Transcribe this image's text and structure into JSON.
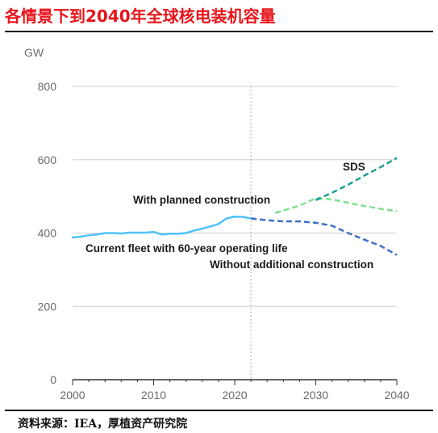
{
  "header": {
    "title": "各情景下到2040年全球核电装机容量"
  },
  "footer": {
    "source": "资料来源：IEA，厚植资产研究院"
  },
  "chart_data": {
    "type": "line",
    "title": "各情景下到2040年全球核电装机容量",
    "ylabel": "GW",
    "xlabel": "",
    "xlim": [
      2000,
      2040
    ],
    "ylim": [
      0,
      800
    ],
    "x_ticks": [
      2000,
      2010,
      2020,
      2030,
      2040
    ],
    "y_ticks": [
      0,
      200,
      400,
      600,
      800
    ],
    "grid": "horizontal",
    "reference_line_x": 2022,
    "annotations": [
      "With planned construction",
      "Current fleet with 60-year operating life",
      "Without additional construction",
      "SDS"
    ],
    "series": [
      {
        "name": "Current fleet with 60-year operating life",
        "color": "#4fc3f7",
        "style": "solid",
        "x": [
          2000,
          2001,
          2002,
          2003,
          2004,
          2005,
          2006,
          2007,
          2008,
          2009,
          2010,
          2011,
          2012,
          2013,
          2014,
          2015,
          2016,
          2017,
          2018,
          2019,
          2020,
          2021,
          2022
        ],
        "y": [
          388,
          390,
          394,
          396,
          400,
          400,
          399,
          401,
          401,
          401,
          403,
          396,
          398,
          398,
          400,
          407,
          412,
          418,
          425,
          440,
          445,
          444,
          440
        ]
      },
      {
        "name": "Without additional construction",
        "color": "#3b6fc4",
        "style": "dashed",
        "x": [
          2022,
          2024,
          2026,
          2028,
          2030,
          2032,
          2034,
          2036,
          2038,
          2040
        ],
        "y": [
          440,
          435,
          432,
          432,
          428,
          420,
          400,
          382,
          365,
          340
        ]
      },
      {
        "name": "With planned construction",
        "color": "#7ee08f",
        "style": "dashed",
        "x": [
          2025,
          2028,
          2030,
          2032,
          2035,
          2038,
          2040
        ],
        "y": [
          455,
          475,
          495,
          492,
          478,
          466,
          460
        ]
      },
      {
        "name": "SDS",
        "color": "#1a9e8c",
        "style": "dashed",
        "x": [
          2030,
          2032,
          2034,
          2036,
          2038,
          2040
        ],
        "y": [
          490,
          510,
          532,
          557,
          580,
          605
        ]
      }
    ]
  }
}
